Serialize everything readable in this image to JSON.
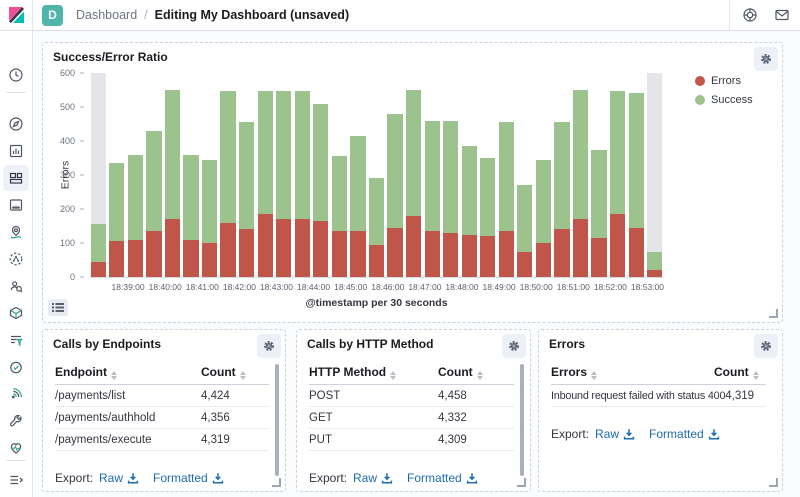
{
  "topbar": {
    "space_badge": "D",
    "breadcrumb_root": "Dashboard",
    "breadcrumb_sep": "/",
    "breadcrumb_current": "Editing My Dashboard (unsaved)",
    "icons": [
      "kibana-logo",
      "help-icon",
      "newsfeed-icon"
    ]
  },
  "sidebar": {
    "selected": "dashboard",
    "icons": [
      "recently-viewed",
      "discover",
      "visualize",
      "dashboard",
      "canvas",
      "maps",
      "machine-learning",
      "graph",
      "infrastructure",
      "logs",
      "uptime",
      "apm",
      "dev-tools",
      "monitoring",
      "collapse-menu"
    ]
  },
  "chart_data": {
    "type": "bar",
    "stacked": true,
    "title": "Success/Error Ratio",
    "xlabel": "@timestamp per 30 seconds",
    "ylabel": "Errors",
    "ylim": [
      0,
      600
    ],
    "y_ticks": [
      0,
      100,
      200,
      300,
      400,
      500,
      600
    ],
    "x_tick_labels": [
      "18:39:00",
      "18:40:00",
      "18:41:00",
      "18:42:00",
      "18:43:00",
      "18:44:00",
      "18:45:00",
      "18:46:00",
      "18:47:00",
      "18:48:00",
      "18:49:00",
      "18:50:00",
      "18:51:00",
      "18:52:00",
      "18:53:00"
    ],
    "x_tick_first_index": 2,
    "x_tick_step": 2,
    "partial_buckets": [
      0,
      30
    ],
    "endzone_color": "#e4e5e9",
    "legend_position": "right",
    "series": [
      {
        "name": "Errors",
        "color": "#bf5649",
        "values": [
          45,
          105,
          110,
          135,
          170,
          110,
          100,
          160,
          140,
          185,
          170,
          170,
          165,
          135,
          135,
          95,
          145,
          180,
          135,
          130,
          125,
          120,
          135,
          75,
          100,
          140,
          170,
          115,
          185,
          145,
          20
        ]
      },
      {
        "name": "Success",
        "color": "#9cc28e",
        "values": [
          110,
          230,
          250,
          295,
          380,
          250,
          245,
          388,
          315,
          363,
          378,
          377,
          343,
          220,
          280,
          195,
          333,
          370,
          325,
          330,
          260,
          230,
          320,
          195,
          245,
          315,
          380,
          260,
          363,
          395,
          55
        ]
      }
    ]
  },
  "panels": {
    "endpoints": {
      "title": "Calls by Endpoints",
      "columns": [
        "Endpoint",
        "Count"
      ],
      "rows": [
        [
          "/payments/list",
          "4,424"
        ],
        [
          "/payments/authhold",
          "4,356"
        ],
        [
          "/payments/execute",
          "4,319"
        ]
      ],
      "export": {
        "label": "Export:",
        "raw": "Raw",
        "formatted": "Formatted"
      }
    },
    "http_method": {
      "title": "Calls by HTTP Method",
      "columns": [
        "HTTP Method",
        "Count"
      ],
      "rows": [
        [
          "POST",
          "4,458"
        ],
        [
          "GET",
          "4,332"
        ],
        [
          "PUT",
          "4,309"
        ]
      ],
      "export": {
        "label": "Export:",
        "raw": "Raw",
        "formatted": "Formatted"
      }
    },
    "errors": {
      "title": "Errors",
      "columns": [
        "Errors",
        "Count"
      ],
      "rows": [
        [
          "Inbound request failed with status 400",
          "4,319"
        ]
      ],
      "export": {
        "label": "Export:",
        "raw": "Raw",
        "formatted": "Formatted"
      }
    }
  }
}
